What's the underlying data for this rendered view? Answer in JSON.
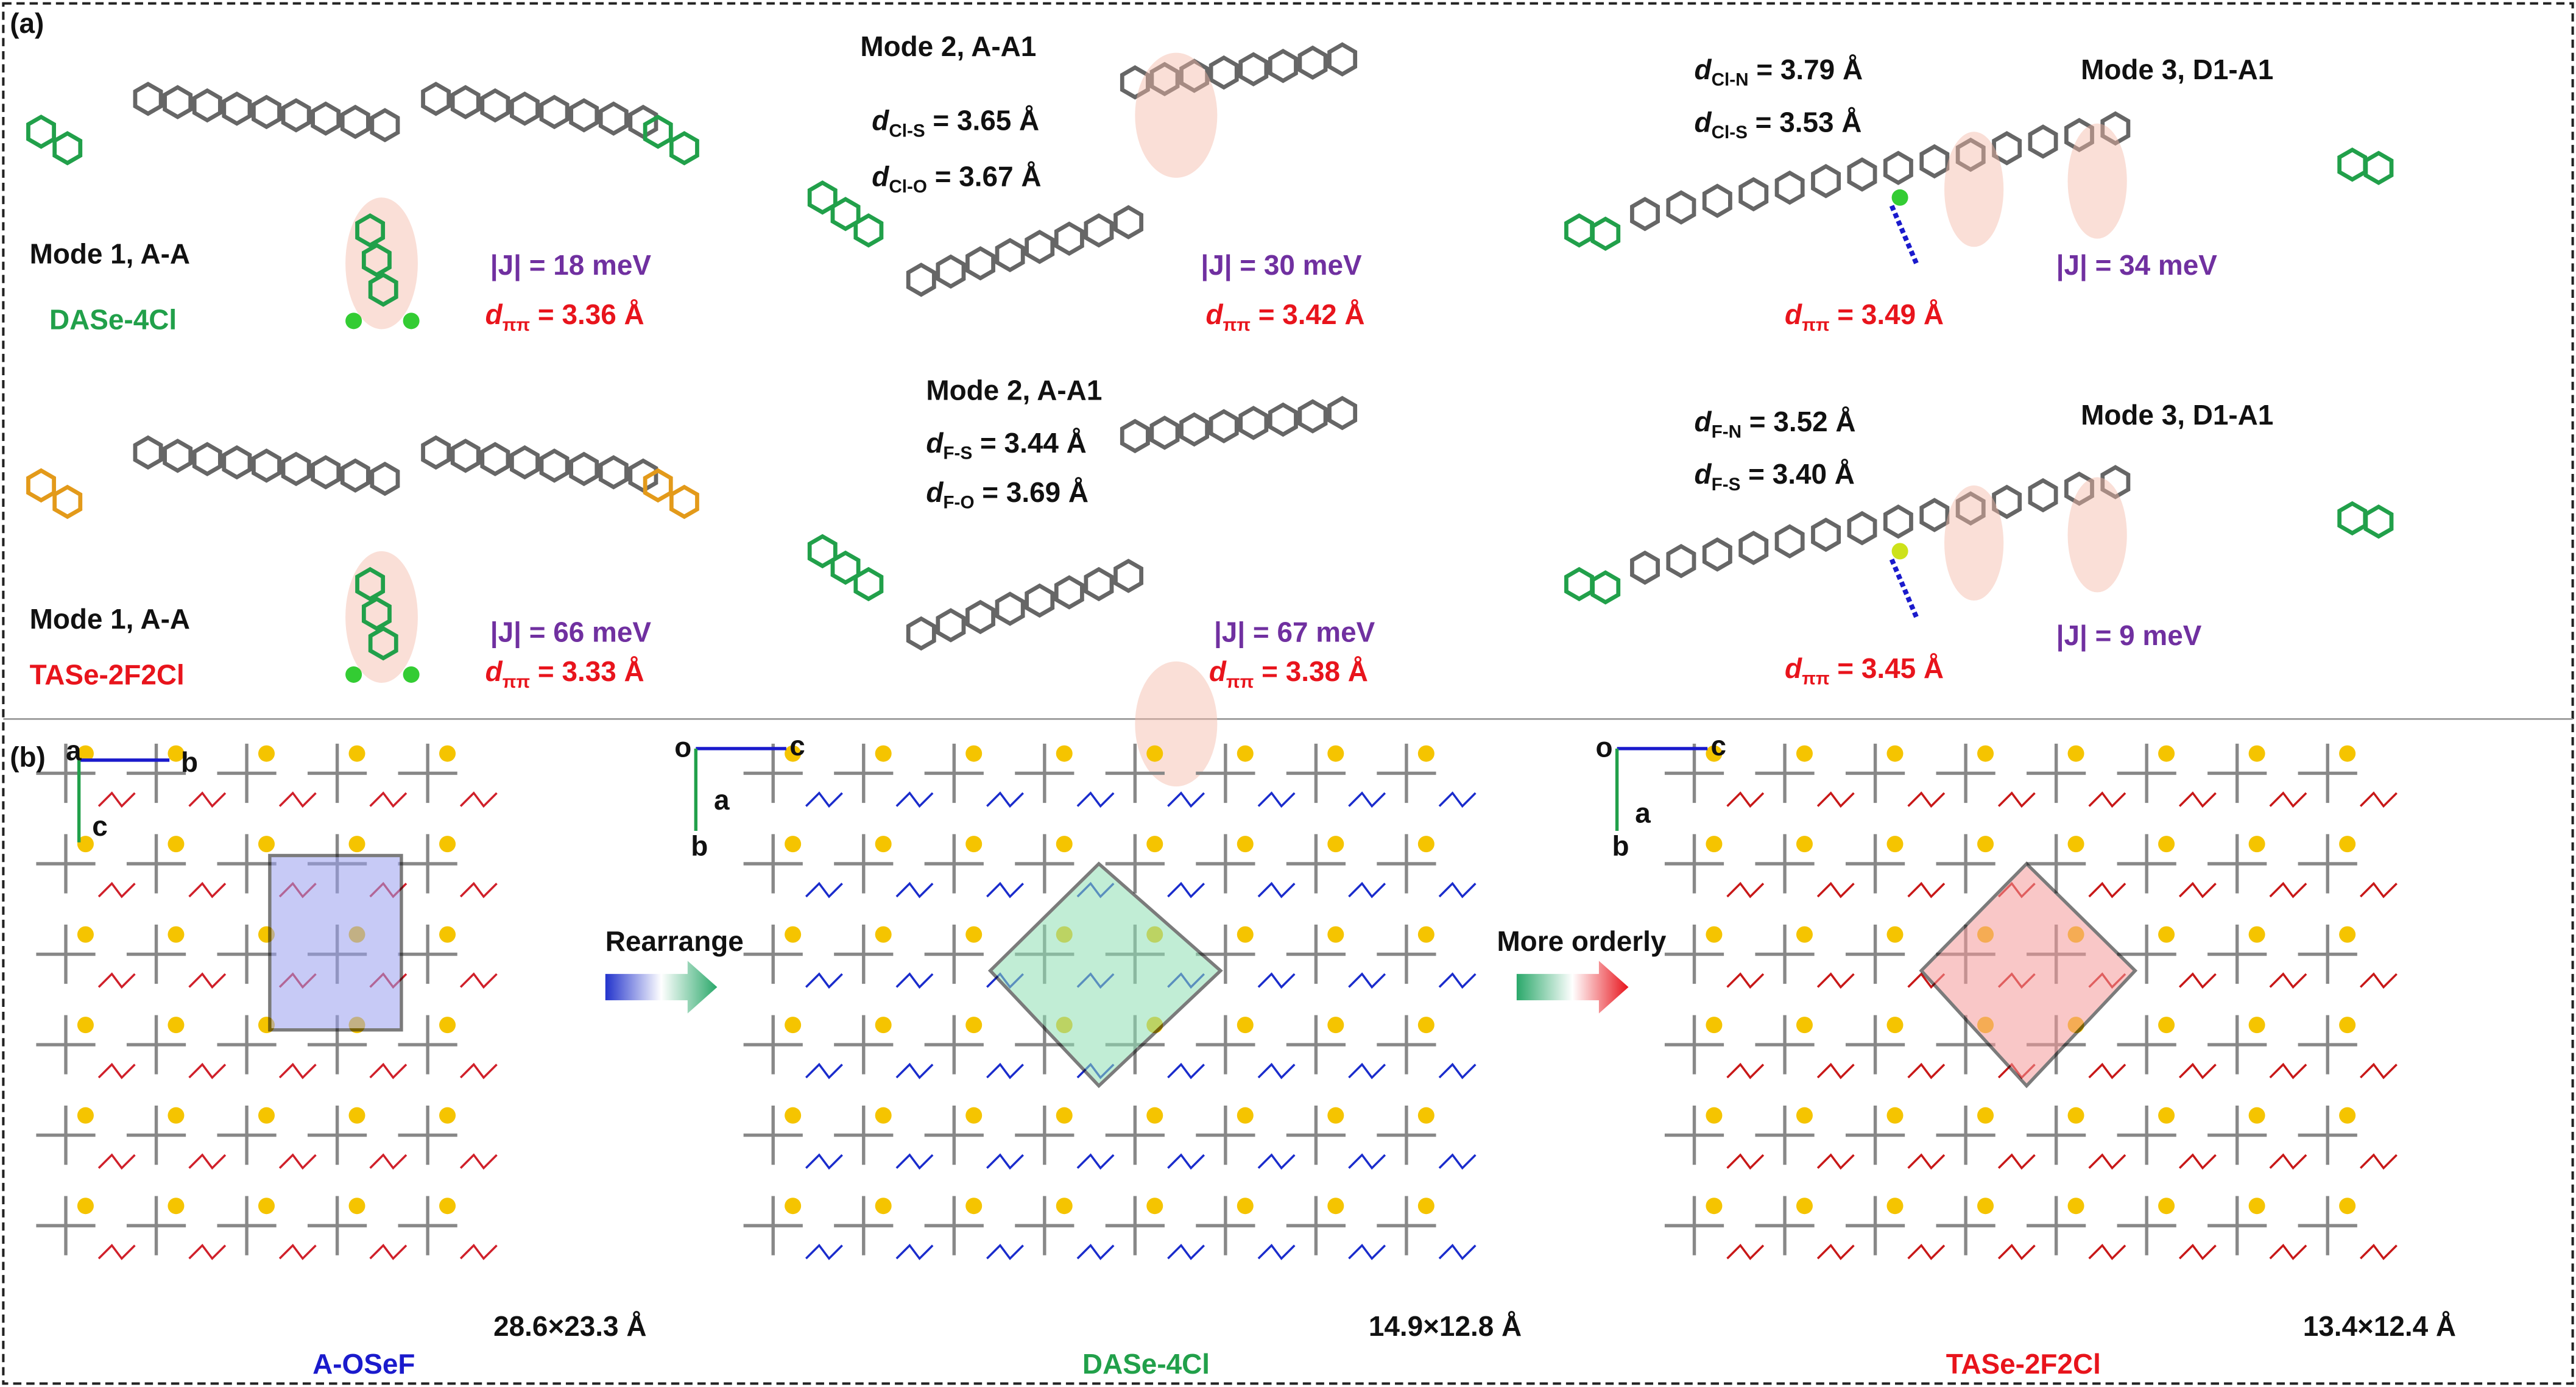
{
  "panel_a": {
    "label": "(a)",
    "cells": [
      {
        "mode": "Mode 1, A-A",
        "name": "DASe-4Cl",
        "J": "|J| = 18 meV",
        "d_pipi": {
          "d": "d",
          "sub": "ππ",
          "text": " = 3.36 Å"
        }
      },
      {
        "mode": "Mode 2, A-A1",
        "J": "|J| = 30 meV",
        "d_pipi": {
          "d": "d",
          "sub": "ππ",
          "text": " = 3.42 Å"
        },
        "contacts": [
          {
            "d": "d",
            "sub": "Cl-S",
            "text": " = 3.65 Å"
          },
          {
            "d": "d",
            "sub": "Cl-O",
            "text": " = 3.67 Å"
          }
        ]
      },
      {
        "mode": "Mode 3, D1-A1",
        "J": "|J| = 34 meV",
        "d_pipi": {
          "d": "d",
          "sub": "ππ",
          "text": " = 3.49 Å"
        },
        "contacts": [
          {
            "d": "d",
            "sub": "Cl-N",
            "text": " = 3.79 Å"
          },
          {
            "d": "d",
            "sub": "Cl-S",
            "text": " = 3.53 Å"
          }
        ]
      },
      {
        "mode": "Mode 1, A-A",
        "name": "TASe-2F2Cl",
        "J": "|J| = 66 meV",
        "d_pipi": {
          "d": "d",
          "sub": "ππ",
          "text": " = 3.33 Å"
        }
      },
      {
        "mode": "Mode 2, A-A1",
        "J": "|J| = 67 meV",
        "d_pipi": {
          "d": "d",
          "sub": "ππ",
          "text": " = 3.38 Å"
        },
        "contacts": [
          {
            "d": "d",
            "sub": "F-S",
            "text": " = 3.44 Å"
          },
          {
            "d": "d",
            "sub": "F-O",
            "text": " = 3.69 Å"
          }
        ]
      },
      {
        "mode": "Mode 3, D1-A1",
        "J": "|J| = 9 meV",
        "d_pipi": {
          "d": "d",
          "sub": "ππ",
          "text": " = 3.45 Å"
        },
        "contacts": [
          {
            "d": "d",
            "sub": "F-N",
            "text": " = 3.52 Å"
          },
          {
            "d": "d",
            "sub": "F-S",
            "text": " = 3.40 Å"
          }
        ]
      }
    ]
  },
  "panel_b": {
    "label": "(b)",
    "arrows": [
      "Rearrange",
      "More orderly"
    ],
    "structures": [
      {
        "name": "A-OSeF",
        "size": "28.6×23.3 Å",
        "axes": [
          "a",
          "b",
          "c"
        ]
      },
      {
        "name": "DASe-4Cl",
        "size": "14.9×12.8 Å",
        "axes": [
          "o",
          "c",
          "a",
          "b"
        ]
      },
      {
        "name": "TASe-2F2Cl",
        "size": "13.4×12.4 Å",
        "axes": [
          "o",
          "c",
          "a",
          "b"
        ]
      }
    ]
  }
}
